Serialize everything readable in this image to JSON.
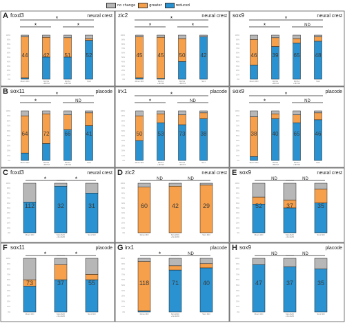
{
  "legend": [
    {
      "label": "no change",
      "color": "#b7b7b7"
    },
    {
      "label": "greater",
      "color": "#f7a04b"
    },
    {
      "label": "reduced",
      "color": "#2a92d0"
    }
  ],
  "colors": {
    "no_change": "#b7b7b7",
    "greater": "#f7a04b",
    "reduced": "#2a92d0"
  },
  "chart_data": [
    {
      "type": "bar",
      "panel": "A",
      "gene": "foxd3",
      "tissue": "neural crest",
      "categories": [
        "Mcs1 MO",
        "MCS1+MCS2",
        "MCS1+MCS3",
        "Six1"
      ],
      "series": [
        {
          "name": "no change",
          "values": [
            4,
            5,
            6,
            8
          ]
        },
        {
          "name": "greater",
          "values": [
            93,
            45,
            44,
            4
          ]
        },
        {
          "name": "reduced",
          "values": [
            3,
            50,
            50,
            88
          ]
        }
      ],
      "ns": [
        "44",
        "42",
        "51",
        "52"
      ],
      "annotations": [
        {
          "text": "*",
          "from": 0,
          "to": 3
        },
        {
          "text": "*",
          "from": 0,
          "to": 1
        },
        {
          "text": "*",
          "from": 2,
          "to": 3
        }
      ]
    },
    {
      "type": "bar",
      "panel": "",
      "gene": "zic2",
      "tissue": "neural crest",
      "categories": [
        "Mcs1 MO",
        "MCS1+MCS2",
        "MCS1+MCS3",
        "Six1"
      ],
      "series": [
        {
          "name": "no change",
          "values": [
            4,
            5,
            8,
            4
          ]
        },
        {
          "name": "greater",
          "values": [
            93,
            93,
            52,
            0
          ]
        },
        {
          "name": "reduced",
          "values": [
            3,
            2,
            40,
            96
          ]
        }
      ],
      "ns": [
        "45",
        "45",
        "50",
        "42"
      ],
      "annotations": [
        {
          "text": "*",
          "from": 0,
          "to": 3
        },
        {
          "text": "*",
          "from": 0,
          "to": 1
        },
        {
          "text": "*",
          "from": 2,
          "to": 3
        }
      ]
    },
    {
      "type": "bar",
      "panel": "",
      "gene": "sox9",
      "tissue": "neural crest",
      "categories": [
        "Mcs1 MO",
        "MCS1+MCS2",
        "MCS1+MCS3",
        "Six1"
      ],
      "series": [
        {
          "name": "no change",
          "values": [
            10,
            6,
            8,
            4
          ]
        },
        {
          "name": "greater",
          "values": [
            58,
            20,
            10,
            10
          ]
        },
        {
          "name": "reduced",
          "values": [
            32,
            74,
            82,
            86
          ]
        }
      ],
      "ns": [
        "46",
        "39",
        "65",
        "48"
      ],
      "annotations": [
        {
          "text": "*",
          "from": 0,
          "to": 3
        },
        {
          "text": "*",
          "from": 0,
          "to": 1
        },
        {
          "text": "ND",
          "from": 2,
          "to": 3
        }
      ]
    },
    {
      "type": "bar",
      "panel": "B",
      "gene": "sox11",
      "tissue": "placode",
      "categories": [
        "Mcs1 MO",
        "MCS1+MCS2",
        "MCS1+MCS3",
        "Six1"
      ],
      "series": [
        {
          "name": "no change",
          "values": [
            10,
            6,
            8,
            4
          ]
        },
        {
          "name": "greater",
          "values": [
            75,
            60,
            30,
            26
          ]
        },
        {
          "name": "reduced",
          "values": [
            15,
            34,
            62,
            70
          ]
        }
      ],
      "ns": [
        "64",
        "72",
        "66",
        "41"
      ],
      "annotations": [
        {
          "text": "*",
          "from": 0,
          "to": 3
        },
        {
          "text": "*",
          "from": 0,
          "to": 1
        },
        {
          "text": "ND",
          "from": 2,
          "to": 3
        }
      ]
    },
    {
      "type": "bar",
      "panel": "",
      "gene": "irx1",
      "tissue": "placode",
      "categories": [
        "Mcs1 MO",
        "MCS1+MCS2",
        "MCS1+MCS3",
        "Six1"
      ],
      "series": [
        {
          "name": "no change",
          "values": [
            10,
            6,
            8,
            4
          ]
        },
        {
          "name": "greater",
          "values": [
            50,
            18,
            20,
            12
          ]
        },
        {
          "name": "reduced",
          "values": [
            40,
            76,
            72,
            84
          ]
        }
      ],
      "ns": [
        "50",
        "53",
        "73",
        "38"
      ],
      "annotations": [
        {
          "text": "*",
          "from": 0,
          "to": 3
        },
        {
          "text": "*",
          "from": 0,
          "to": 1
        },
        {
          "text": "ND",
          "from": 2,
          "to": 3
        }
      ]
    },
    {
      "type": "bar",
      "panel": "",
      "gene": "sox9",
      "tissue": "placode",
      "categories": [
        "Mcs1 MO",
        "MCS1+MCS2",
        "MCS1+MCS3",
        "Six1"
      ],
      "series": [
        {
          "name": "no change",
          "values": [
            12,
            6,
            8,
            4
          ]
        },
        {
          "name": "greater",
          "values": [
            80,
            10,
            16,
            14
          ]
        },
        {
          "name": "reduced",
          "values": [
            8,
            84,
            76,
            82
          ]
        }
      ],
      "ns": [
        "38",
        "40",
        "65",
        "46"
      ],
      "annotations": [
        {
          "text": "*",
          "from": 0,
          "to": 3
        },
        {
          "text": "*",
          "from": 0,
          "to": 1
        },
        {
          "text": "ND",
          "from": 2,
          "to": 3
        }
      ]
    },
    {
      "type": "bar",
      "panel": "C",
      "gene": "foxd3",
      "tissue": "neural crest",
      "categories": [
        "Mcs1 MO",
        "Mcs1MO +Six1MO",
        "Six1 MO"
      ],
      "series": [
        {
          "name": "no change",
          "values": [
            38,
            6,
            20
          ]
        },
        {
          "name": "greater",
          "values": [
            0,
            0,
            0
          ]
        },
        {
          "name": "reduced",
          "values": [
            62,
            94,
            80
          ]
        }
      ],
      "ns": [
        "112",
        "32",
        "31"
      ],
      "annotations": [
        {
          "text": "*",
          "from": 0,
          "to": 1
        },
        {
          "text": "*",
          "from": 1,
          "to": 2
        }
      ]
    },
    {
      "type": "bar",
      "panel": "D",
      "gene": "zic2",
      "tissue": "neural crest",
      "categories": [
        "Mcs1 MO",
        "Mcs1MO +Six1MO",
        "Six1 MO"
      ],
      "series": [
        {
          "name": "no change",
          "values": [
            8,
            6,
            4
          ]
        },
        {
          "name": "greater",
          "values": [
            92,
            94,
            96
          ]
        },
        {
          "name": "reduced",
          "values": [
            0,
            0,
            0
          ]
        }
      ],
      "ns": [
        "60",
        "42",
        "29"
      ],
      "annotations": [
        {
          "text": "ND",
          "from": 0,
          "to": 1
        },
        {
          "text": "ND",
          "from": 1,
          "to": 2
        }
      ]
    },
    {
      "type": "bar",
      "panel": "E",
      "gene": "sox9",
      "tissue": "neural crest",
      "categories": [
        "Mcs1 MO",
        "Mcs1MO +Six1MO",
        "Six1 MO"
      ],
      "series": [
        {
          "name": "no change",
          "values": [
            28,
            34,
            12
          ]
        },
        {
          "name": "greater",
          "values": [
            14,
            16,
            28
          ]
        },
        {
          "name": "reduced",
          "values": [
            58,
            50,
            60
          ]
        }
      ],
      "ns": [
        "52",
        "37",
        "35"
      ],
      "annotations": [
        {
          "text": "ND",
          "from": 0,
          "to": 1
        },
        {
          "text": "ND",
          "from": 1,
          "to": 2
        }
      ]
    },
    {
      "type": "bar",
      "panel": "F",
      "gene": "sox11",
      "tissue": "placode",
      "categories": [
        "Mcs1 MO",
        "Mcs1MO +Six1MO",
        "Six1 MO"
      ],
      "series": [
        {
          "name": "no change",
          "values": [
            40,
            12,
            30
          ]
        },
        {
          "name": "greater",
          "values": [
            12,
            28,
            10
          ]
        },
        {
          "name": "reduced",
          "values": [
            48,
            60,
            60
          ]
        }
      ],
      "ns": [
        "73",
        "37",
        "55"
      ],
      "annotations": [
        {
          "text": "*",
          "from": 0,
          "to": 1
        },
        {
          "text": "*",
          "from": 1,
          "to": 2
        }
      ]
    },
    {
      "type": "bar",
      "panel": "G",
      "gene": "irx1",
      "tissue": "placode",
      "categories": [
        "Mcs1 MO",
        "Mcs1MO +Six1MO",
        "Six1 MO"
      ],
      "series": [
        {
          "name": "no change",
          "values": [
            6,
            14,
            10
          ]
        },
        {
          "name": "greater",
          "values": [
            92,
            8,
            8
          ]
        },
        {
          "name": "reduced",
          "values": [
            2,
            78,
            82
          ]
        }
      ],
      "ns": [
        "118",
        "71",
        "40"
      ],
      "annotations": [
        {
          "text": "*",
          "from": 0,
          "to": 1
        },
        {
          "text": "ND",
          "from": 1,
          "to": 2
        }
      ]
    },
    {
      "type": "bar",
      "panel": "H",
      "gene": "sox9",
      "tissue": "placode",
      "categories": [
        "Mcs1 MO",
        "Mcs1MO +Six1MO",
        "Six1 MO"
      ],
      "series": [
        {
          "name": "no change",
          "values": [
            12,
            16,
            20
          ]
        },
        {
          "name": "greater",
          "values": [
            0,
            0,
            0
          ]
        },
        {
          "name": "reduced",
          "values": [
            88,
            84,
            80
          ]
        }
      ],
      "ns": [
        "47",
        "37",
        "35"
      ],
      "annotations": [
        {
          "text": "ND",
          "from": 0,
          "to": 1
        },
        {
          "text": "ND",
          "from": 1,
          "to": 2
        }
      ]
    }
  ]
}
